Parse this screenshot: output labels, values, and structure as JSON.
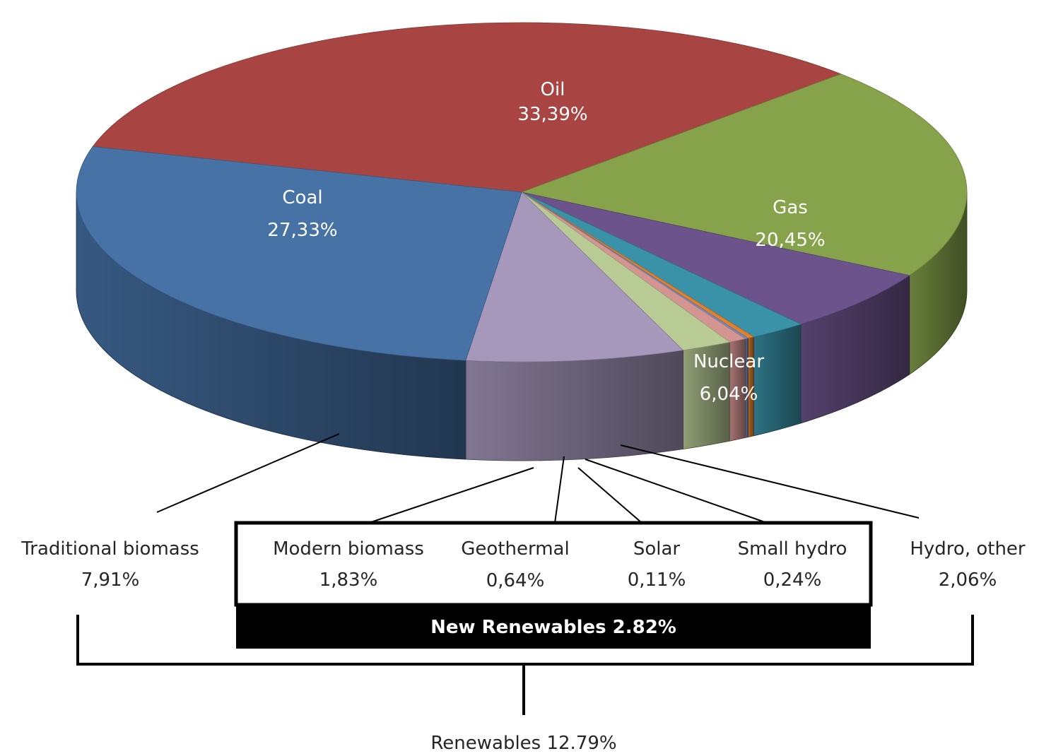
{
  "chart_data": {
    "type": "pie",
    "style": "3d-tilted",
    "slices": [
      {
        "name": "Oil",
        "value": 33.39,
        "label_pct": "33,39%",
        "color": "#A84442",
        "label_position": "inside"
      },
      {
        "name": "Gas",
        "value": 20.45,
        "label_pct": "20,45%",
        "color": "#86A34B",
        "label_position": "inside"
      },
      {
        "name": "Nuclear",
        "value": 6.04,
        "label_pct": "6,04%",
        "color": "#6C538B",
        "label_position": "inside"
      },
      {
        "name": "Hydro, other",
        "value": 2.06,
        "label_pct": "2,06%",
        "color": "#3A92A8",
        "label_position": "outside"
      },
      {
        "name": "Small hydro",
        "value": 0.24,
        "label_pct": "0,24%",
        "color": "#E2802D",
        "label_position": "outside"
      },
      {
        "name": "Solar",
        "value": 0.11,
        "label_pct": "0,11%",
        "color": "#6D8FC6",
        "label_position": "outside"
      },
      {
        "name": "Geothermal",
        "value": 0.64,
        "label_pct": "0,64%",
        "color": "#D49492",
        "label_position": "outside"
      },
      {
        "name": "Modern biomass",
        "value": 1.83,
        "label_pct": "1,83%",
        "color": "#B8CB95",
        "label_position": "outside"
      },
      {
        "name": "Traditional biomass",
        "value": 7.91,
        "label_pct": "7,91%",
        "color": "#A598BB",
        "label_position": "outside"
      },
      {
        "name": "Coal",
        "value": 27.33,
        "label_pct": "27,33%",
        "color": "#4772A6",
        "label_position": "inside"
      }
    ],
    "groups": {
      "new_renewables_label": "New Renewables 2.82%",
      "renewables_label": "Renewables 12.79%"
    }
  }
}
